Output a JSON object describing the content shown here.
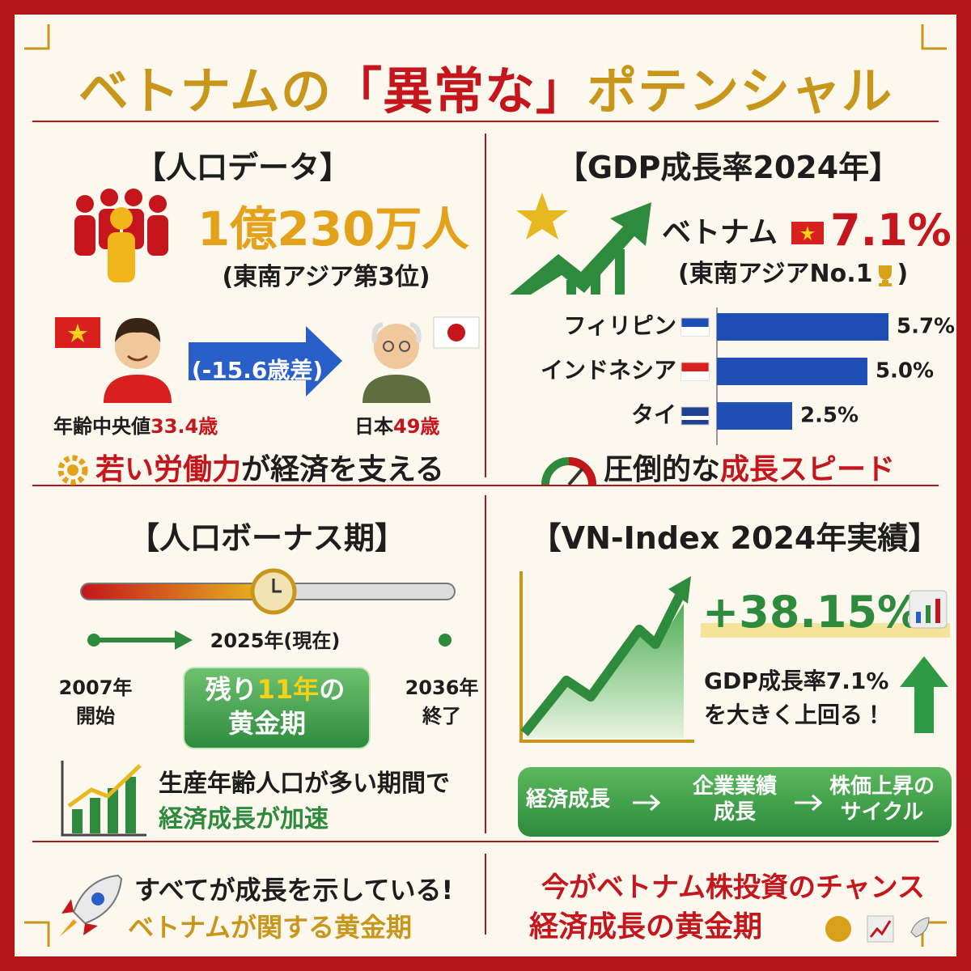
{
  "title": {
    "part1": "ベトナムの",
    "part2": "「異常な」",
    "part3": "ポテンシャル"
  },
  "population": {
    "heading": "【人口データ】",
    "total": "1億230万人",
    "rank": "(東南アジア第3位)",
    "age_gap": "(-15.6歳差)",
    "vietnam_label": "年齢中央値",
    "vietnam_age": "33.4歳",
    "japan_label": "日本",
    "japan_age": "49歳",
    "message_highlight": "若い労働力",
    "message_rest": "が経済を支える"
  },
  "gdp": {
    "heading": "【GDP成長率2024年】",
    "country": "ベトナム",
    "rate": "7.1%",
    "note_text": "(東南アジアNo.1",
    "note_close": ")",
    "chart": {
      "type": "bar",
      "orientation": "horizontal",
      "categories": [
        "フィリピン",
        "インドネシア",
        "タイ"
      ],
      "values": [
        5.7,
        5.0,
        2.5
      ],
      "value_labels": [
        "5.7%",
        "5.0%",
        "2.5%"
      ],
      "color": "#1f4fb5"
    },
    "message_rest": "圧倒的な",
    "message_highlight": "成長スピード"
  },
  "bonus": {
    "heading": "【人口ボーナス期】",
    "current": "2025年(現在)",
    "start_year": "2007年",
    "start_label": "開始",
    "end_year": "2036年",
    "end_label": "終了",
    "remaining_pre": "残り",
    "remaining_years": "11年",
    "remaining_post": "の",
    "golden": "黄金期",
    "message_line1": "生産年齢人口が多い期間で",
    "message_line2": "経済成長が加速"
  },
  "vn_index": {
    "heading": "【VN-Index 2024年実績】",
    "return": "+38.15%",
    "compare_line1": "GDP成長率7.1%",
    "compare_line2": "を大きく上回る！",
    "cycle": [
      [
        "経済成長"
      ],
      [
        "企業業績",
        "成長"
      ],
      [
        "株価上昇の",
        "サイクル"
      ]
    ]
  },
  "footer": {
    "left_line1": "すべてが成長を示している!",
    "left_line2": "ベトナムが関する黄金期",
    "right_line1": "今がベトナム株投資のチャンス",
    "right_line2": "経済成長の黄金期"
  }
}
